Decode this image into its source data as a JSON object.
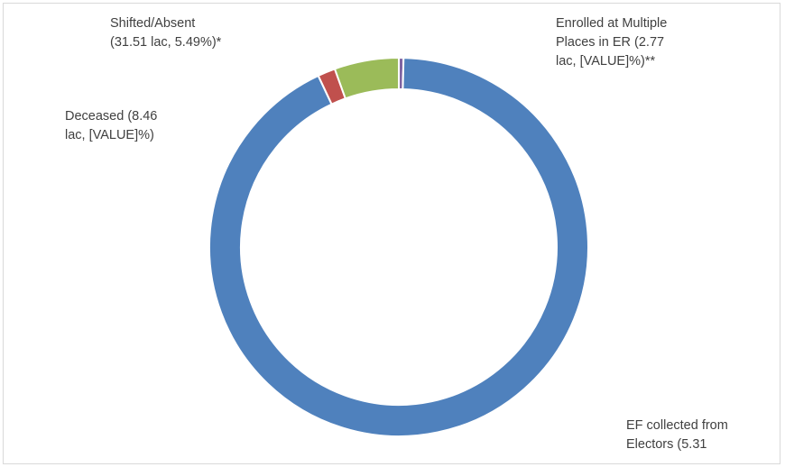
{
  "chart_data": {
    "type": "pie",
    "donut": true,
    "legend": "none",
    "colors": [
      "#4f81bd",
      "#c0504d",
      "#9bbb59",
      "#8064a2"
    ],
    "slices": [
      {
        "value": 0.4,
        "color": "#8064a2",
        "label_lines": [
          "Enrolled at Multiple",
          "Places in ER (2.77",
          "lac, [VALUE]%)**"
        ]
      },
      {
        "value": 92.6,
        "color": "#4f81bd",
        "label_lines": [
          "EF collected from",
          "Electors (5.31"
        ]
      },
      {
        "value": 1.5,
        "color": "#c0504d",
        "label_lines": [
          "Deceased (8.46",
          "lac, [VALUE]%)"
        ]
      },
      {
        "value": 5.49,
        "color": "#9bbb59",
        "label_lines": [
          "Shifted/Absent",
          "(31.51 lac, 5.49%)*"
        ]
      }
    ]
  }
}
